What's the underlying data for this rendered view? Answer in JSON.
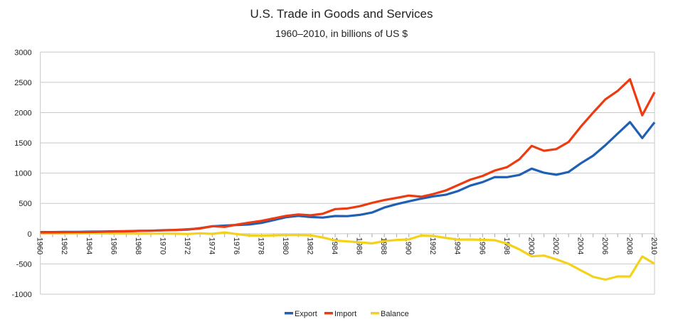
{
  "chart_data": {
    "type": "line",
    "title": "U.S. Trade in Goods and Services",
    "subtitle": "1960–2010, in billions of US $",
    "xlabel": "",
    "ylabel": "",
    "ylim": [
      -1000,
      3000
    ],
    "yticks": [
      -1000,
      -500,
      0,
      500,
      1000,
      1500,
      2000,
      2500,
      3000
    ],
    "xlim": [
      1960,
      2010
    ],
    "xticks": [
      1960,
      1962,
      1964,
      1966,
      1968,
      1970,
      1972,
      1974,
      1976,
      1978,
      1980,
      1982,
      1984,
      1986,
      1988,
      1990,
      1992,
      1994,
      1996,
      1998,
      2000,
      2002,
      2004,
      2006,
      2008,
      2010
    ],
    "grid": true,
    "legend": "bottom",
    "x": [
      1960,
      1961,
      1962,
      1963,
      1964,
      1965,
      1966,
      1967,
      1968,
      1969,
      1970,
      1971,
      1972,
      1973,
      1974,
      1975,
      1976,
      1977,
      1978,
      1979,
      1980,
      1981,
      1982,
      1983,
      1984,
      1985,
      1986,
      1987,
      1988,
      1989,
      1990,
      1991,
      1992,
      1993,
      1994,
      1995,
      1996,
      1997,
      1998,
      1999,
      2000,
      2001,
      2002,
      2003,
      2004,
      2005,
      2006,
      2007,
      2008,
      2009,
      2010
    ],
    "series": [
      {
        "name": "Export",
        "color": "#1f5fb4",
        "values": [
          26,
          26,
          28,
          30,
          33,
          35,
          39,
          41,
          46,
          49,
          57,
          60,
          67,
          91,
          121,
          133,
          143,
          152,
          178,
          224,
          272,
          294,
          275,
          266,
          291,
          289,
          310,
          349,
          431,
          487,
          535,
          578,
          617,
          643,
          703,
          794,
          852,
          935,
          934,
          970,
          1075,
          1006,
          974,
          1018,
          1163,
          1288,
          1461,
          1653,
          1843,
          1579,
          1839
        ]
      },
      {
        "name": "Import",
        "color": "#ee3a10",
        "values": [
          22,
          22,
          24,
          25,
          27,
          31,
          36,
          39,
          45,
          49,
          54,
          61,
          73,
          85,
          124,
          112,
          149,
          182,
          212,
          253,
          294,
          317,
          303,
          329,
          405,
          417,
          453,
          509,
          554,
          591,
          630,
          610,
          656,
          713,
          802,
          891,
          954,
          1043,
          1099,
          1230,
          1450,
          1369,
          1398,
          1514,
          1769,
          2000,
          2219,
          2359,
          2550,
          1956,
          2338
        ]
      },
      {
        "name": "Balance",
        "color": "#f5d21a",
        "values": [
          4,
          4,
          3,
          4,
          6,
          5,
          3,
          3,
          0,
          0,
          2,
          -1,
          -6,
          6,
          -3,
          20,
          -7,
          -30,
          -34,
          -29,
          -22,
          -23,
          -28,
          -63,
          -114,
          -128,
          -143,
          -160,
          -123,
          -104,
          -95,
          -31,
          -39,
          -70,
          -98,
          -96,
          -102,
          -108,
          -166,
          -260,
          -374,
          -363,
          -424,
          -497,
          -606,
          -712,
          -759,
          -706,
          -708,
          -377,
          -499
        ]
      }
    ]
  }
}
